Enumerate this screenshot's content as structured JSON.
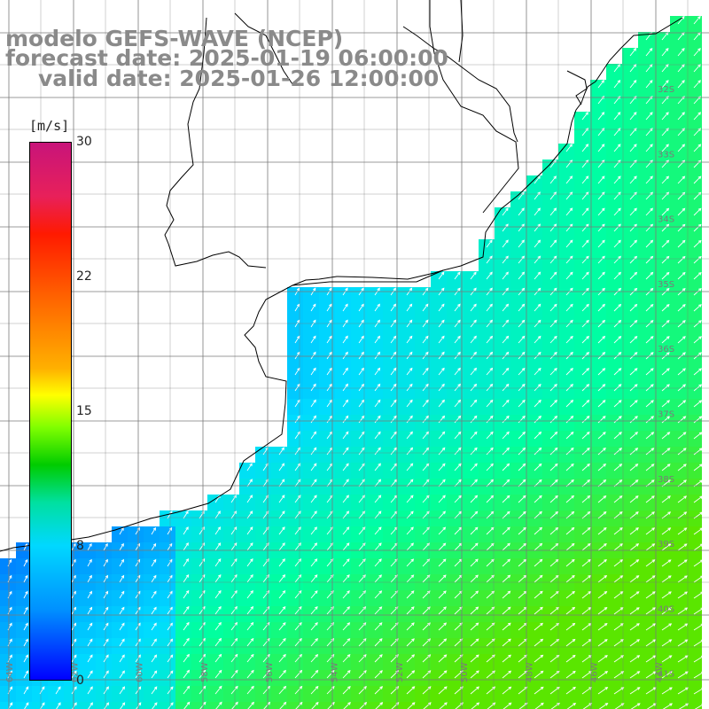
{
  "title": {
    "line1": "modelo GEFS-WAVE (NCEP)",
    "line2": "forecast date: 2025-01-19 06:00:00",
    "line3": "valid date: 2025-01-26 12:00:00"
  },
  "colorbar": {
    "unit": "[m/s]",
    "ticks": [
      "30",
      "22",
      "15",
      "8",
      "0"
    ]
  },
  "lat_labels": [
    "32S",
    "33S",
    "34S",
    "35S",
    "36S",
    "37S",
    "38S",
    "39S",
    "40S",
    "41S"
  ],
  "lon_labels": [
    "64W",
    "62W",
    "60W",
    "58W",
    "56W",
    "54W",
    "52W",
    "50W",
    "48W",
    "46W",
    "44W"
  ],
  "colors": {
    "land": "#ffffff",
    "grid": "#7a7a7a",
    "coast": "#000000",
    "title": "#8a8a8a"
  }
}
